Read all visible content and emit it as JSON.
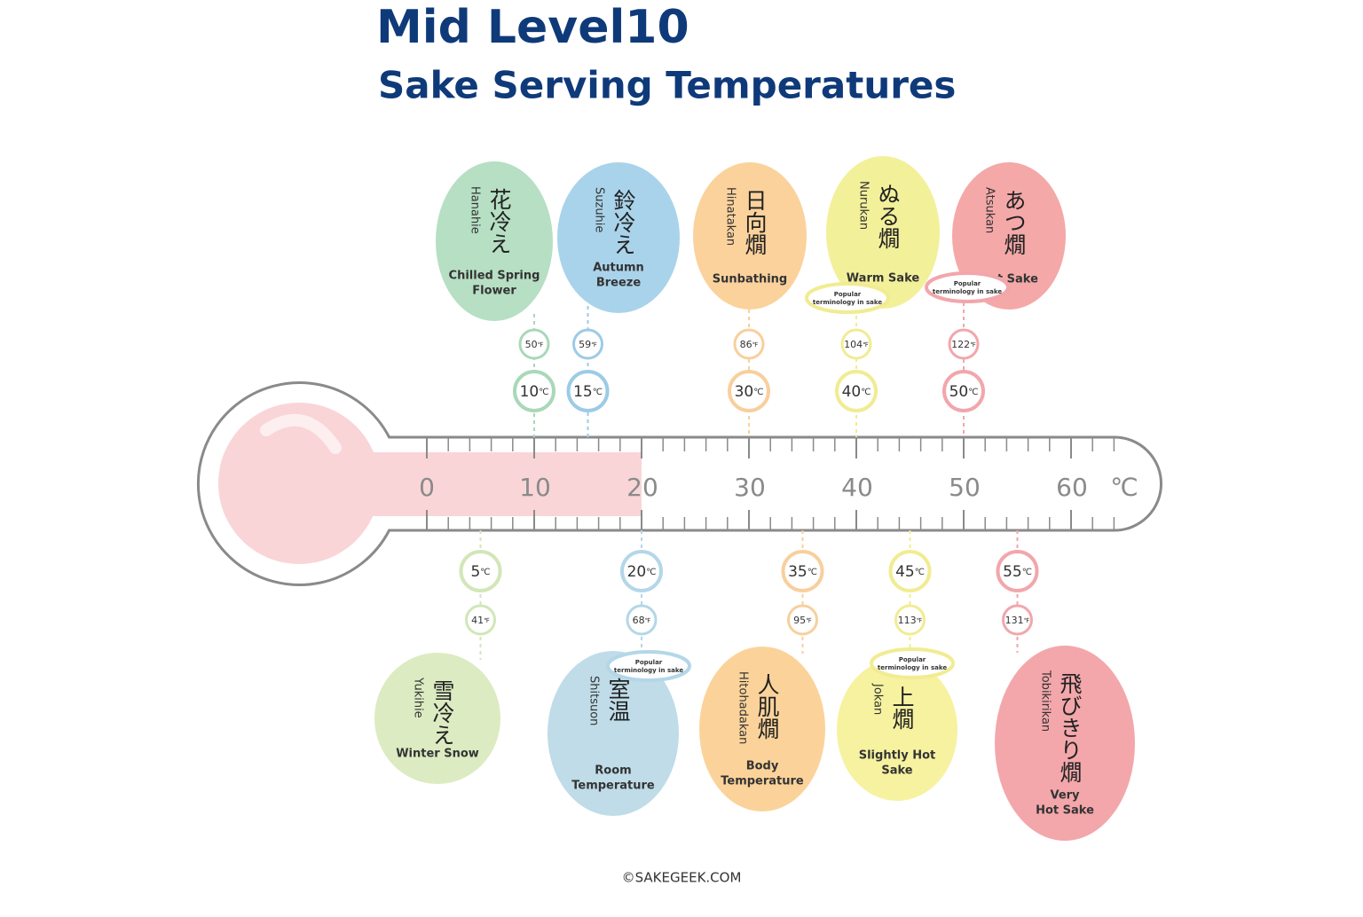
{
  "title": "Mid Level10",
  "subtitle": "Sake Serving Temperatures",
  "units": {
    "c": "℃",
    "f": "℉"
  },
  "scale": {
    "ticks": [
      0,
      10,
      20,
      30,
      40,
      50,
      60
    ],
    "unit": "℃",
    "level": 20
  },
  "items": [
    {
      "kanji": "花冷え",
      "romaji": "Hanahie",
      "english": [
        "Chilled Spring",
        "Flower"
      ],
      "celsius": 10,
      "fahrenheit": 50,
      "color": "#b6dfc4",
      "ring": "#a9d8b8"
    },
    {
      "kanji": "鈴冷え",
      "romaji": "Suzuhie",
      "english": [
        "Autumn",
        "Breeze"
      ],
      "celsius": 15,
      "fahrenheit": 59,
      "color": "#a9d3ea",
      "ring": "#9ccbe6"
    },
    {
      "kanji": "日向燗",
      "romaji": "Hinatakan",
      "english": [
        "Sunbathing"
      ],
      "celsius": 30,
      "fahrenheit": 86,
      "color": "#fbd29c",
      "ring": "#f8cf9d"
    },
    {
      "kanji": "ぬる燗",
      "romaji": "Nurukan",
      "english": [
        "Warm Sake"
      ],
      "celsius": 40,
      "fahrenheit": 104,
      "color": "#f3f09a",
      "ring": "#f1ec92",
      "badge": [
        "Popular",
        "terminology in sake"
      ]
    },
    {
      "kanji": "あつ燗",
      "romaji": "Atsukan",
      "english": [
        "Hot Sake"
      ],
      "celsius": 50,
      "fahrenheit": 122,
      "color": "#f4a8a8",
      "ring": "#f2a6ab",
      "badge": [
        "Popular",
        "terminology in sake"
      ]
    },
    {
      "kanji": "雪冷え",
      "romaji": "Yukihie",
      "english": [
        "Winter Snow"
      ],
      "celsius": 5,
      "fahrenheit": 41,
      "color": "#dcebc1",
      "ring": "#d2e6b8"
    },
    {
      "kanji": "室温",
      "romaji": "Shitsuon",
      "english": [
        "Room",
        "Temperature"
      ],
      "celsius": 20,
      "fahrenheit": 68,
      "color": "#bfdce8",
      "ring": "#b3d7e8",
      "badge": [
        "Popular",
        "terminology in sake"
      ]
    },
    {
      "kanji": "人肌燗",
      "romaji": "Hitohadakan",
      "english": [
        "Body",
        "Temperature"
      ],
      "celsius": 35,
      "fahrenheit": 95,
      "color": "#fbd39a",
      "ring": "#f8cf9d"
    },
    {
      "kanji": "上燗",
      "romaji": "Jokan",
      "english": [
        "Slightly Hot",
        "Sake"
      ],
      "celsius": 45,
      "fahrenheit": 113,
      "color": "#f6f2a0",
      "ring": "#f1ec92",
      "badge": [
        "Popular",
        "terminology in sake"
      ]
    },
    {
      "kanji": "飛びきり燗",
      "romaji": "Tobikirikan",
      "english": [
        "Very",
        "Hot Sake"
      ],
      "celsius": 55,
      "fahrenheit": 131,
      "color": "#f3a7ab",
      "ring": "#f2a6ab"
    }
  ],
  "footer": "©SAKEGEEK.COM"
}
